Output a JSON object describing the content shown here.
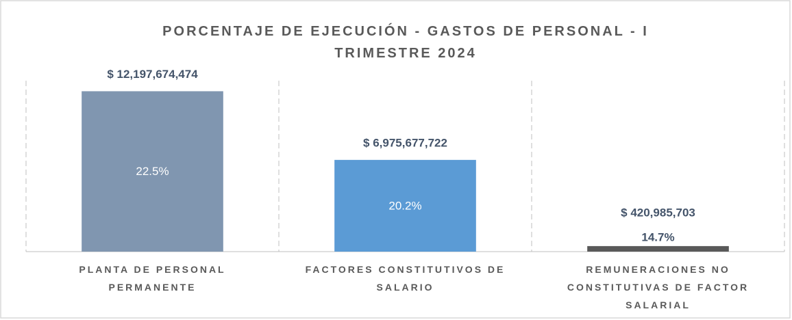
{
  "chart_data": {
    "type": "bar",
    "title": "PORCENTAJE DE EJECUCIÓN - GASTOS DE PERSONAL - I TRIMESTRE 2024",
    "categories": [
      "PLANTA DE PERSONAL PERMANENTE",
      "FACTORES CONSTITUTIVOS DE SALARIO",
      "REMUNERACIONES NO CONSTITUTIVAS DE FACTOR SALARIAL"
    ],
    "values": [
      12197674474,
      6975677722,
      420985703
    ],
    "value_labels": [
      "$ 12,197,674,474",
      "$ 6,975,677,722",
      "$ 420,985,703"
    ],
    "percentages": [
      22.5,
      20.2,
      14.7
    ],
    "percentage_labels": [
      "22.5%",
      "20.2%",
      "14.7%"
    ],
    "colors": [
      "#8096b0",
      "#5b9bd5",
      "#595959"
    ],
    "ylim": [
      0,
      13000000000
    ]
  }
}
